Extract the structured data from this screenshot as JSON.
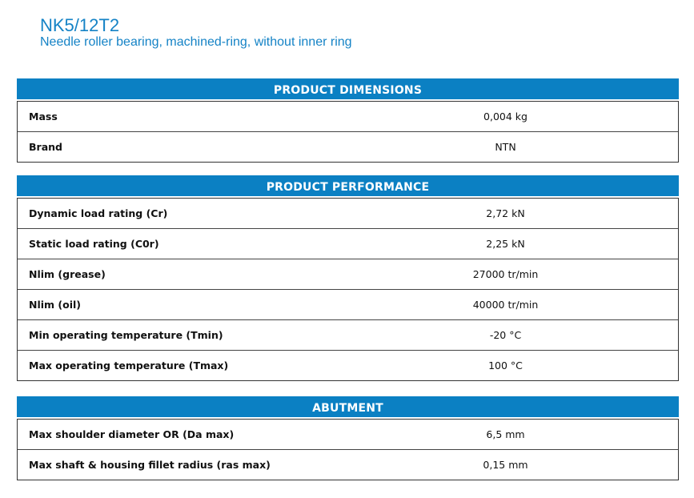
{
  "product": {
    "title": "NK5/12T2",
    "subtitle": "Needle roller bearing, machined-ring, without inner ring"
  },
  "sections": [
    {
      "title": "PRODUCT DIMENSIONS",
      "rows": [
        {
          "label": "Mass",
          "value": "0,004 kg"
        },
        {
          "label": "Brand",
          "value": "NTN"
        }
      ]
    },
    {
      "title": "PRODUCT PERFORMANCE",
      "rows": [
        {
          "label": "Dynamic load rating (Cr)",
          "value": "2,72 kN"
        },
        {
          "label": "Static load rating (C0r)",
          "value": "2,25 kN"
        },
        {
          "label": "Nlim (grease)",
          "value": "27000 tr/min"
        },
        {
          "label": "Nlim (oil)",
          "value": "40000 tr/min"
        },
        {
          "label": "Min operating temperature (Tmin)",
          "value": "-20 °C"
        },
        {
          "label": "Max operating temperature (Tmax)",
          "value": "100 °C"
        }
      ]
    },
    {
      "title": "ABUTMENT",
      "rows": [
        {
          "label": "Max shoulder diameter OR (Da max)",
          "value": "6,5 mm"
        },
        {
          "label": "Max shaft & housing fillet radius (ras max)",
          "value": "0,15 mm"
        }
      ]
    }
  ],
  "colors": {
    "accent": "#0b80c3",
    "title": "#1583c6"
  }
}
